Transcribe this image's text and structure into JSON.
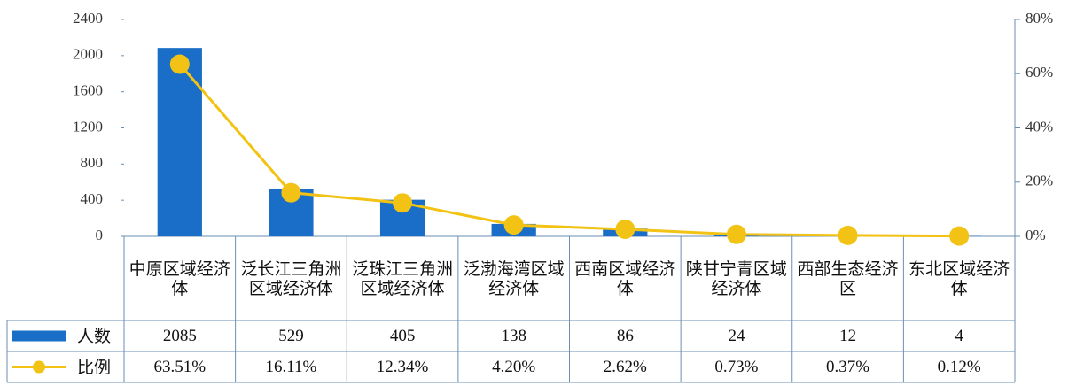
{
  "chart_data": {
    "type": "bar_line",
    "categories": [
      "中原区域经济体",
      "泛长江三角洲区域经济体",
      "泛珠江三角洲区域经济体",
      "泛渤海湾区域经济体",
      "西南区域经济体",
      "陕甘宁青区域经济体",
      "西部生态经济区",
      "东北区域经济体"
    ],
    "series": [
      {
        "name": "人数",
        "color": "#1a6ec8",
        "type": "bar",
        "values": [
          2085,
          529,
          405,
          138,
          86,
          24,
          12,
          4
        ]
      },
      {
        "name": "比例",
        "color": "#f2c314",
        "type": "line",
        "axis": "y2",
        "values": [
          63.51,
          16.11,
          12.34,
          4.2,
          2.62,
          0.73,
          0.37,
          0.12
        ],
        "value_labels": [
          "63.51%",
          "16.11%",
          "12.34%",
          "4.20%",
          "2.62%",
          "0.73%",
          "0.37%",
          "0.12%"
        ]
      }
    ],
    "ylim": [
      0,
      2400
    ],
    "yticks": [
      0,
      400,
      800,
      1200,
      1600,
      2000,
      2400
    ],
    "y2lim": [
      0,
      80
    ],
    "y2ticks": [
      {
        "value": 0,
        "label": "0%"
      },
      {
        "value": 20,
        "label": "20%"
      },
      {
        "value": 40,
        "label": "40%"
      },
      {
        "value": 60,
        "label": "60%"
      },
      {
        "value": 80,
        "label": "80%"
      }
    ],
    "data_table": true
  }
}
